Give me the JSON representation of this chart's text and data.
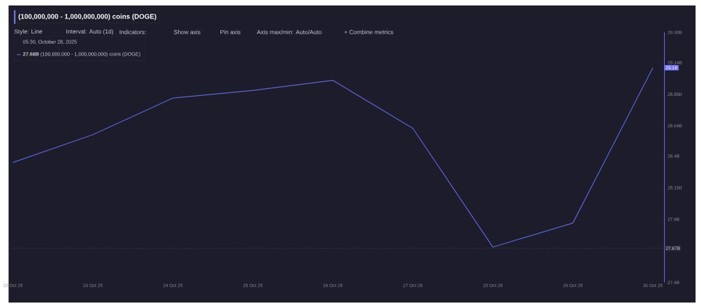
{
  "chart_data": {
    "type": "line",
    "title": "(100,000,000 - 1,000,000,000) coins (DOGE)",
    "annotations": [
      "Style: Line",
      "Interval: Auto (1d)",
      "Indicators:",
      "Show axis",
      "Pin axis",
      "Axis max/min: Auto/Auto",
      "+ Combine metrics",
      {
        "text": "29.1B",
        "y": 29.1
      }
    ],
    "categories": [
      "22 Oct 25",
      "23 Oct 25",
      "24 Oct 25",
      "25 Oct 25",
      "26 Oct 25",
      "27 Oct 25",
      "28 Oct 25",
      "29 Oct 25",
      "30 Oct 25"
    ],
    "series": [
      {
        "name": "**27.68B** (100,000,000 - 1,000,000,000) coins (DOGE)",
        "color": "#5a67d8",
        "values": [
          28.35,
          28.57,
          28.86,
          28.92,
          29.0,
          28.62,
          27.68,
          27.87,
          29.1
        ]
      }
    ],
    "legend_title": "05:30, October 28, 2025",
    "legend": "top left",
    "ylim": [
      27.4,
      29.38
    ],
    "yticks": [
      {
        "value": 27.4,
        "label": "27.4B"
      },
      {
        "value": 27.9,
        "label": "27.9B"
      },
      {
        "value": 28.15,
        "label": "28.15B"
      },
      {
        "value": 28.4,
        "label": "28.4B"
      },
      {
        "value": 28.64,
        "label": "28.64B"
      },
      {
        "value": 28.89,
        "label": "28.89B"
      },
      {
        "value": 29.14,
        "label": "29.14B"
      },
      {
        "value": 29.38,
        "label": "29.38B"
      }
    ],
    "ref_lines": [
      {
        "axis": "y",
        "value": 27.67,
        "label": "27.67B",
        "line_style": "dotted"
      }
    ],
    "grid": true,
    "marker": "none",
    "line_style": "solid"
  }
}
